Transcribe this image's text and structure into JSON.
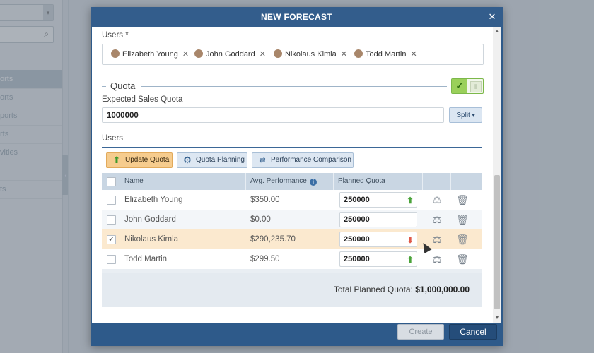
{
  "background": {
    "nav_items": [
      "orts",
      "orts",
      "ports",
      "rts",
      "vities",
      "",
      "ts"
    ]
  },
  "modal": {
    "title": "NEW FORECAST",
    "close_icon": "close-icon"
  },
  "form": {
    "users_label": "Users *",
    "selected_users": [
      {
        "name": "Elizabeth Young"
      },
      {
        "name": "John Goddard"
      },
      {
        "name": "Nikolaus Kimla"
      },
      {
        "name": "Todd Martin"
      }
    ],
    "quota_section_title": "Quota",
    "quota_toggle": {
      "checked": true,
      "label": "✓"
    },
    "expected_quota_label": "Expected Sales Quota",
    "expected_quota_value": "1000000",
    "split_label": "Split",
    "users_table_label": "Users"
  },
  "toolbar": {
    "update_quota": "Update Quota",
    "quota_planning": "Quota Planning",
    "performance_comparison": "Performance Comparison"
  },
  "table": {
    "columns": [
      "Name",
      "Avg. Performance",
      "Planned Quota"
    ],
    "rows": [
      {
        "checked": false,
        "name": "Elizabeth Young",
        "avg_performance": "$350.00",
        "planned_quota": "250000",
        "trend": "up"
      },
      {
        "checked": false,
        "name": "John Goddard",
        "avg_performance": "$0.00",
        "planned_quota": "250000",
        "trend": "none"
      },
      {
        "checked": true,
        "name": "Nikolaus Kimla",
        "avg_performance": "$290,235.70",
        "planned_quota": "250000",
        "trend": "down"
      },
      {
        "checked": false,
        "name": "Todd Martin",
        "avg_performance": "$299.50",
        "planned_quota": "250000",
        "trend": "up"
      }
    ],
    "total_label": "Total Planned Quota:",
    "total_value": "$1,000,000.00"
  },
  "footer": {
    "create_label": "Create",
    "cancel_label": "Cancel"
  },
  "colors": {
    "header": "#335d8c",
    "accent_orange": "#f6cc8e",
    "toggle_green": "#9ad05a",
    "selected_row": "#fbe9cf"
  }
}
